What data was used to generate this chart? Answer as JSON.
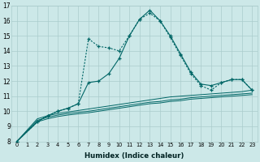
{
  "xlabel": "Humidex (Indice chaleur)",
  "bg_color": "#cce8e8",
  "grid_color": "#aacccc",
  "line_color": "#006666",
  "xlim": [
    -0.5,
    23.5
  ],
  "ylim": [
    8,
    17
  ],
  "xticks": [
    0,
    1,
    2,
    3,
    4,
    5,
    6,
    7,
    8,
    9,
    10,
    11,
    12,
    13,
    14,
    15,
    16,
    17,
    18,
    19,
    20,
    21,
    22,
    23
  ],
  "yticks": [
    8,
    9,
    10,
    11,
    12,
    13,
    14,
    15,
    16,
    17
  ],
  "series1_x": [
    0,
    2,
    3,
    4,
    5,
    6,
    7,
    8,
    9,
    10,
    11,
    12,
    13,
    14,
    15,
    16,
    17,
    18,
    19,
    20,
    21,
    22,
    23
  ],
  "series1_y": [
    8.0,
    9.3,
    9.7,
    10.0,
    10.2,
    10.5,
    11.9,
    12.0,
    12.5,
    13.5,
    15.0,
    16.1,
    16.7,
    16.0,
    15.0,
    13.8,
    12.6,
    11.8,
    11.7,
    11.9,
    12.1,
    12.1,
    11.4
  ],
  "series2_x": [
    0,
    2,
    3,
    4,
    5,
    6,
    7,
    8,
    9,
    10,
    11,
    12,
    13,
    14,
    15,
    16,
    17,
    18,
    19,
    20,
    21,
    22,
    23
  ],
  "series2_y": [
    8.0,
    9.3,
    9.7,
    10.0,
    10.2,
    10.5,
    14.8,
    14.3,
    14.2,
    14.0,
    15.0,
    16.1,
    16.5,
    16.0,
    14.9,
    13.7,
    12.5,
    11.7,
    11.4,
    11.9,
    12.1,
    12.1,
    11.4
  ],
  "flat1_x": [
    0,
    2,
    3,
    4,
    5,
    6,
    7,
    8,
    9,
    10,
    11,
    12,
    13,
    14,
    15,
    16,
    17,
    18,
    19,
    20,
    21,
    22,
    23
  ],
  "flat1_y": [
    8.0,
    9.3,
    9.5,
    9.65,
    9.75,
    9.83,
    9.9,
    10.0,
    10.1,
    10.2,
    10.3,
    10.4,
    10.5,
    10.55,
    10.65,
    10.7,
    10.8,
    10.85,
    10.9,
    10.95,
    11.0,
    11.05,
    11.1
  ],
  "flat2_x": [
    0,
    2,
    3,
    4,
    5,
    6,
    7,
    8,
    9,
    10,
    11,
    12,
    13,
    14,
    15,
    16,
    17,
    18,
    19,
    20,
    21,
    22,
    23
  ],
  "flat2_y": [
    8.0,
    9.4,
    9.6,
    9.75,
    9.85,
    9.93,
    10.0,
    10.1,
    10.2,
    10.3,
    10.4,
    10.5,
    10.6,
    10.65,
    10.75,
    10.8,
    10.9,
    10.95,
    11.0,
    11.05,
    11.1,
    11.15,
    11.2
  ],
  "flat3_x": [
    0,
    2,
    3,
    4,
    5,
    6,
    7,
    8,
    9,
    10,
    11,
    12,
    13,
    14,
    15,
    16,
    17,
    18,
    19,
    20,
    21,
    22,
    23
  ],
  "flat3_y": [
    8.0,
    9.5,
    9.7,
    9.85,
    9.95,
    10.05,
    10.15,
    10.25,
    10.35,
    10.45,
    10.55,
    10.65,
    10.75,
    10.85,
    10.95,
    11.0,
    11.05,
    11.1,
    11.15,
    11.2,
    11.25,
    11.3,
    11.4
  ]
}
